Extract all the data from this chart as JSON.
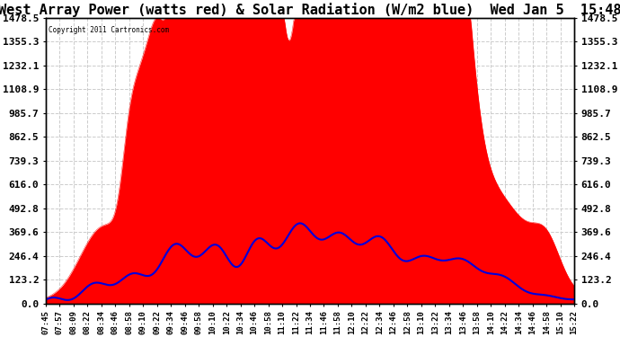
{
  "title": "West Array Power (watts red) & Solar Radiation (W/m2 blue)  Wed Jan 5  15:48",
  "copyright": "Copyright 2011 Cartronics.com",
  "ymax": 1478.5,
  "yticks": [
    0.0,
    123.2,
    246.4,
    369.6,
    492.8,
    616.0,
    739.3,
    862.5,
    985.7,
    1108.9,
    1232.1,
    1355.3,
    1478.5
  ],
  "ytick_labels": [
    "0.0",
    "123.2",
    "246.4",
    "369.6",
    "492.8",
    "616.0",
    "739.3",
    "862.5",
    "985.7",
    "1108.9",
    "1232.1",
    "1355.3",
    "1478.5"
  ],
  "background_color": "#ffffff",
  "plot_bg_color": "#ffffff",
  "grid_color": "#cccccc",
  "red_color": "#ff0000",
  "blue_color": "#0000dd",
  "title_fontsize": 11,
  "xlabel_fontsize": 6.5,
  "ylabel_fontsize": 8,
  "xtick_labels": [
    "07:45",
    "07:57",
    "08:09",
    "08:22",
    "08:34",
    "08:46",
    "08:58",
    "09:10",
    "09:22",
    "09:34",
    "09:46",
    "09:58",
    "10:10",
    "10:22",
    "10:34",
    "10:46",
    "10:58",
    "11:10",
    "11:22",
    "11:34",
    "11:46",
    "11:58",
    "12:10",
    "12:22",
    "12:34",
    "12:46",
    "12:58",
    "13:10",
    "13:22",
    "13:34",
    "13:46",
    "13:58",
    "14:10",
    "14:22",
    "14:34",
    "14:46",
    "14:58",
    "15:10",
    "15:22"
  ]
}
